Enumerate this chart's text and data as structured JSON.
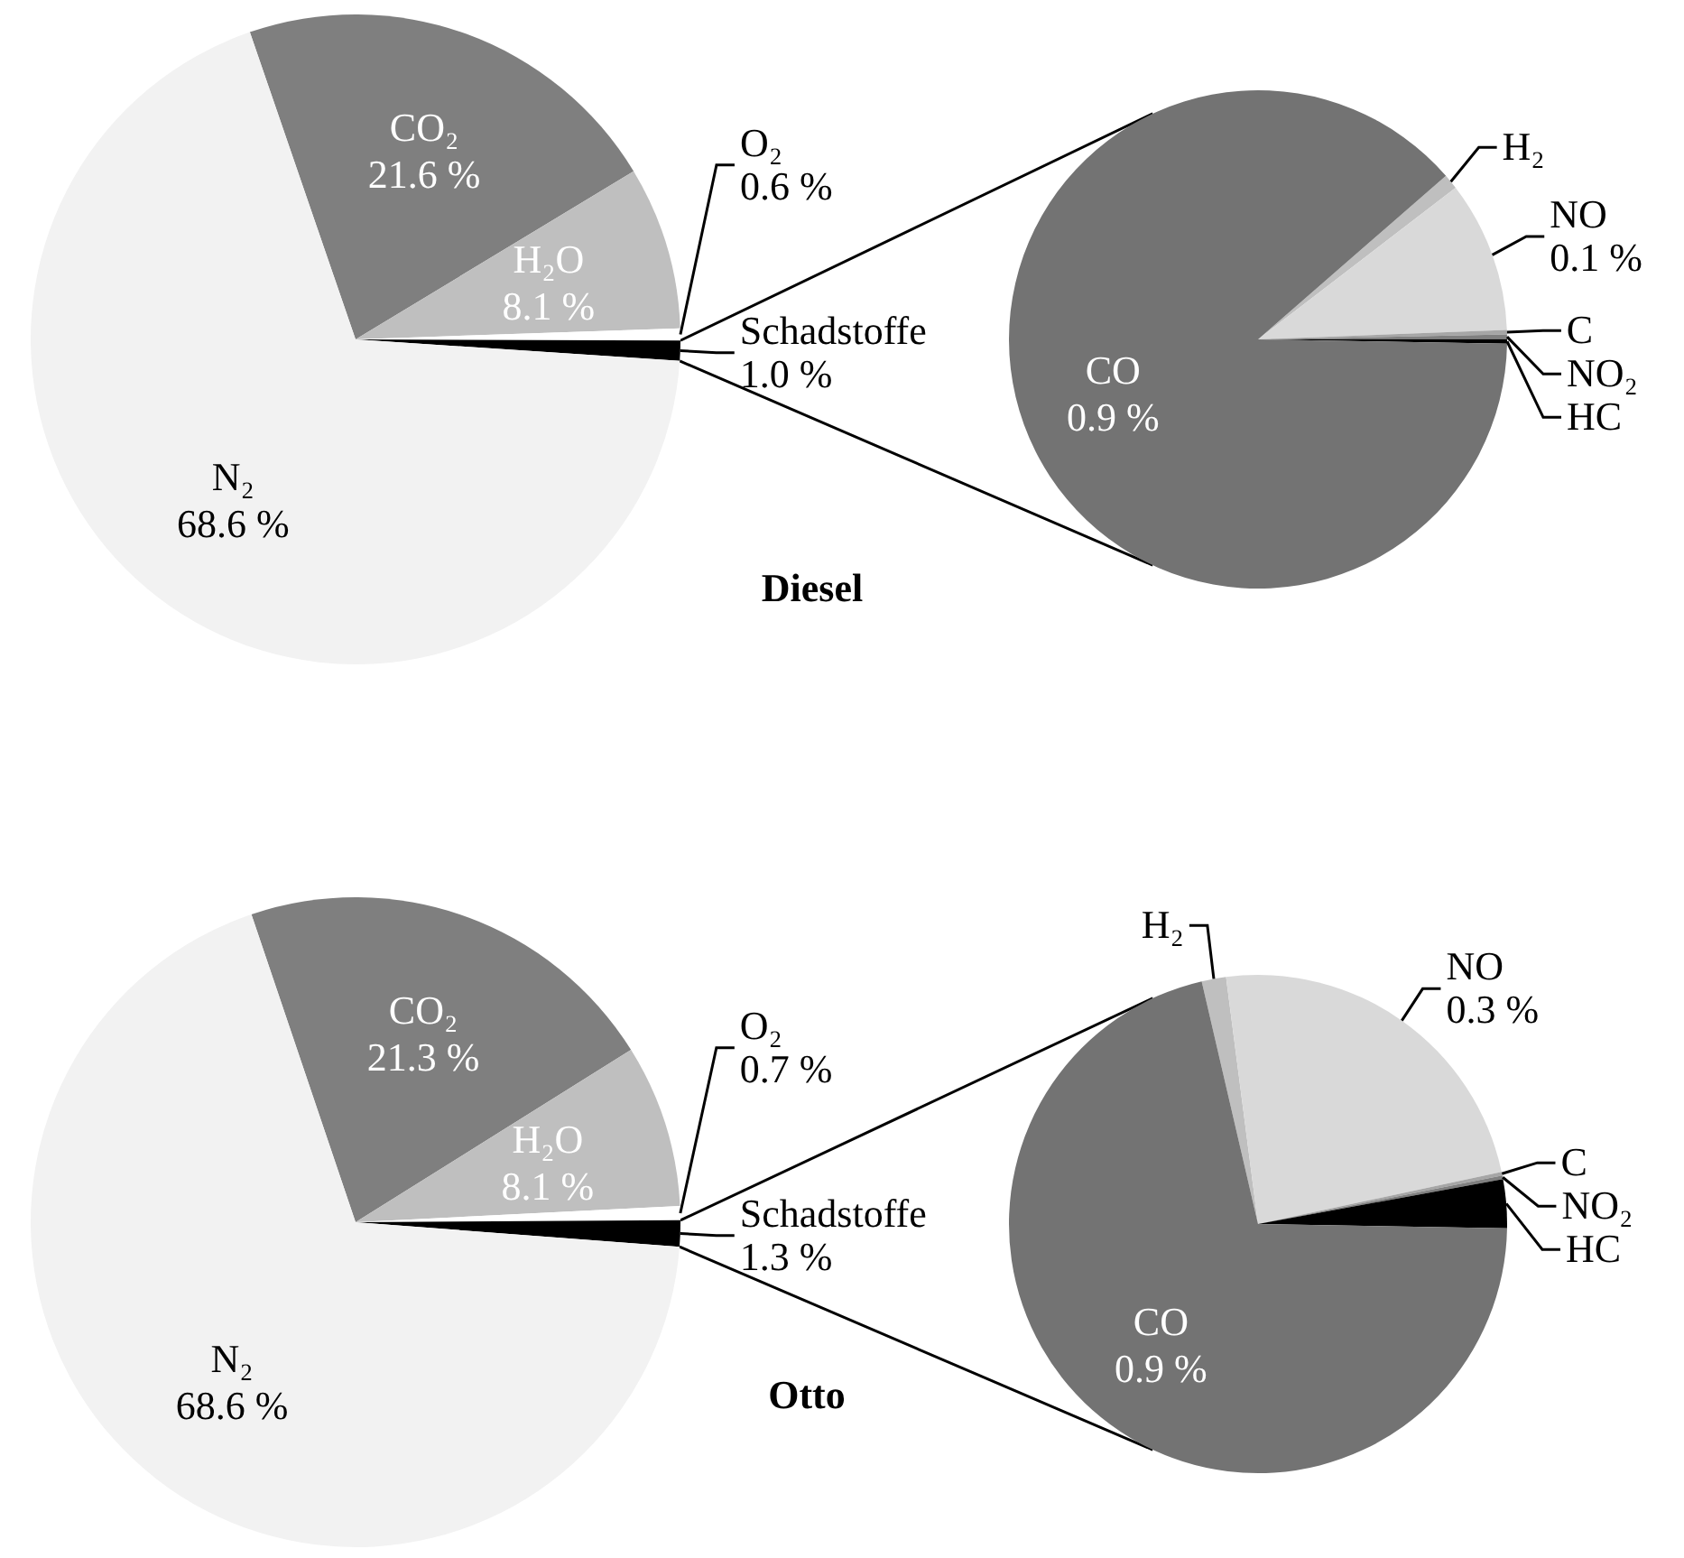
{
  "chart_data": [
    {
      "type": "pie",
      "title": "Diesel",
      "categories": [
        "CO₂",
        "H₂O",
        "O₂",
        "Schadstoffe",
        "N₂"
      ],
      "values": [
        21.6,
        8.1,
        0.6,
        1.0,
        68.6
      ],
      "value_labels": [
        "21.6 %",
        "8.1 %",
        "0.6 %",
        "1.0 %",
        "68.6 %"
      ],
      "colors": [
        "#7f7f7f",
        "#bfbfbf",
        "#ffffff",
        "#000000",
        "#f2f2f2"
      ]
    },
    {
      "type": "pie",
      "categories": [
        "H₂",
        "NO",
        "C",
        "NO₂",
        "HC",
        "CO"
      ],
      "values": [
        0.01,
        0.1,
        0.003,
        0.003,
        0.003,
        0.9
      ],
      "value_labels": [
        null,
        "0.1 %",
        null,
        null,
        null,
        "0.9 %"
      ],
      "colors": [
        "#bfbfbf",
        "#d9d9d9",
        "#a6a6a6",
        "#808080",
        "#000000",
        "#737373"
      ]
    },
    {
      "type": "pie",
      "title": "Otto",
      "categories": [
        "CO₂",
        "H₂O",
        "O₂",
        "Schadstoffe",
        "N₂"
      ],
      "values": [
        21.3,
        8.1,
        0.7,
        1.3,
        68.6
      ],
      "value_labels": [
        "21.3 %",
        "8.1 %",
        "0.7 %",
        "1.3 %",
        "68.6 %"
      ],
      "colors": [
        "#7f7f7f",
        "#bfbfbf",
        "#ffffff",
        "#000000",
        "#f2f2f2"
      ]
    },
    {
      "type": "pie",
      "categories": [
        "H₂",
        "NO",
        "C",
        "NO₂",
        "HC",
        "CO"
      ],
      "values": [
        0.02,
        0.3,
        0.003,
        0.003,
        0.04,
        0.9
      ],
      "value_labels": [
        null,
        "0.3 %",
        null,
        null,
        null,
        "0.9 %"
      ],
      "colors": [
        "#bfbfbf",
        "#d9d9d9",
        "#a6a6a6",
        "#808080",
        "#000000",
        "#737373"
      ]
    }
  ]
}
